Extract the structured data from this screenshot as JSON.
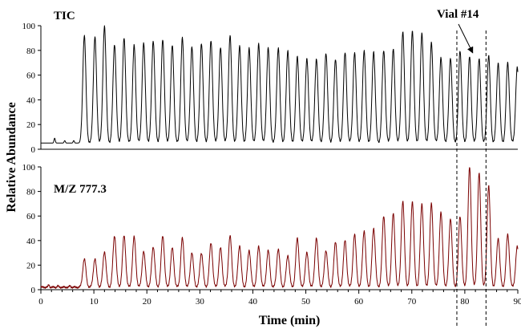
{
  "chart_data": {
    "type": "line",
    "xlabel": "Time (min)",
    "ylabel": "Relative Abundance",
    "xlim": [
      0,
      90
    ],
    "x_ticks": [
      0,
      10,
      20,
      30,
      40,
      50,
      60,
      70,
      80,
      90
    ],
    "grid": false,
    "vlines": [
      78.5,
      84
    ],
    "annotations": [
      {
        "text": "Vial #14",
        "points_to": {
          "panel": 0,
          "x": 81.5,
          "y": 78
        }
      }
    ],
    "panels": [
      {
        "label": "TIC",
        "ylim": [
          0,
          100
        ],
        "y_ticks": [
          0,
          20,
          40,
          60,
          80,
          100
        ],
        "color": "#000000",
        "baseline": 5,
        "minor_peaks": [
          {
            "t": 2.6,
            "h": 9
          },
          {
            "t": 4.5,
            "h": 7
          },
          {
            "t": 6.2,
            "h": 7
          }
        ],
        "peaks": [
          {
            "t": 8.2,
            "h": 92
          },
          {
            "t": 10.2,
            "h": 91
          },
          {
            "t": 12.0,
            "h": 100
          },
          {
            "t": 13.9,
            "h": 85
          },
          {
            "t": 15.7,
            "h": 90
          },
          {
            "t": 17.6,
            "h": 84
          },
          {
            "t": 19.4,
            "h": 86
          },
          {
            "t": 21.2,
            "h": 88
          },
          {
            "t": 23.0,
            "h": 89
          },
          {
            "t": 24.8,
            "h": 84
          },
          {
            "t": 26.7,
            "h": 90
          },
          {
            "t": 28.5,
            "h": 83
          },
          {
            "t": 30.3,
            "h": 86
          },
          {
            "t": 32.1,
            "h": 88
          },
          {
            "t": 33.9,
            "h": 82
          },
          {
            "t": 35.7,
            "h": 92
          },
          {
            "t": 37.5,
            "h": 84
          },
          {
            "t": 39.3,
            "h": 82
          },
          {
            "t": 41.1,
            "h": 85
          },
          {
            "t": 42.9,
            "h": 82
          },
          {
            "t": 44.8,
            "h": 82
          },
          {
            "t": 46.6,
            "h": 80
          },
          {
            "t": 48.4,
            "h": 75
          },
          {
            "t": 50.2,
            "h": 73
          },
          {
            "t": 52.0,
            "h": 73
          },
          {
            "t": 53.8,
            "h": 78
          },
          {
            "t": 55.6,
            "h": 73
          },
          {
            "t": 57.4,
            "h": 78
          },
          {
            "t": 59.2,
            "h": 78
          },
          {
            "t": 61.0,
            "h": 80
          },
          {
            "t": 62.8,
            "h": 79
          },
          {
            "t": 64.7,
            "h": 80
          },
          {
            "t": 66.5,
            "h": 81
          },
          {
            "t": 68.3,
            "h": 95
          },
          {
            "t": 70.1,
            "h": 96
          },
          {
            "t": 71.9,
            "h": 94
          },
          {
            "t": 73.7,
            "h": 86
          },
          {
            "t": 75.5,
            "h": 74
          },
          {
            "t": 77.3,
            "h": 74
          },
          {
            "t": 79.1,
            "h": 80
          },
          {
            "t": 80.9,
            "h": 75
          },
          {
            "t": 82.7,
            "h": 73
          },
          {
            "t": 84.5,
            "h": 76
          },
          {
            "t": 86.3,
            "h": 70
          },
          {
            "t": 88.1,
            "h": 70
          },
          {
            "t": 89.9,
            "h": 66
          }
        ]
      },
      {
        "label": "M/Z 777.3",
        "ylim": [
          0,
          100
        ],
        "y_ticks": [
          0,
          20,
          40,
          60,
          80,
          100
        ],
        "color": "#7a0000",
        "baseline": 2,
        "minor_peaks": [
          {
            "t": 1.5,
            "h": 4
          },
          {
            "t": 3.2,
            "h": 3
          },
          {
            "t": 5.5,
            "h": 3
          }
        ],
        "peaks": [
          {
            "t": 8.2,
            "h": 25
          },
          {
            "t": 10.2,
            "h": 25
          },
          {
            "t": 12.0,
            "h": 31
          },
          {
            "t": 13.9,
            "h": 44
          },
          {
            "t": 15.7,
            "h": 44
          },
          {
            "t": 17.6,
            "h": 43
          },
          {
            "t": 19.4,
            "h": 31
          },
          {
            "t": 21.2,
            "h": 35
          },
          {
            "t": 23.0,
            "h": 44
          },
          {
            "t": 24.8,
            "h": 34
          },
          {
            "t": 26.7,
            "h": 42
          },
          {
            "t": 28.5,
            "h": 30
          },
          {
            "t": 30.3,
            "h": 30
          },
          {
            "t": 32.1,
            "h": 38
          },
          {
            "t": 33.9,
            "h": 34
          },
          {
            "t": 35.7,
            "h": 44
          },
          {
            "t": 37.5,
            "h": 36
          },
          {
            "t": 39.3,
            "h": 32
          },
          {
            "t": 41.1,
            "h": 35
          },
          {
            "t": 42.9,
            "h": 32
          },
          {
            "t": 44.8,
            "h": 33
          },
          {
            "t": 46.6,
            "h": 28
          },
          {
            "t": 48.4,
            "h": 42
          },
          {
            "t": 50.2,
            "h": 30
          },
          {
            "t": 52.0,
            "h": 42
          },
          {
            "t": 53.8,
            "h": 32
          },
          {
            "t": 55.6,
            "h": 39
          },
          {
            "t": 57.4,
            "h": 40
          },
          {
            "t": 59.2,
            "h": 45
          },
          {
            "t": 61.0,
            "h": 48
          },
          {
            "t": 62.8,
            "h": 50
          },
          {
            "t": 64.7,
            "h": 60
          },
          {
            "t": 66.5,
            "h": 62
          },
          {
            "t": 68.3,
            "h": 72
          },
          {
            "t": 70.1,
            "h": 72
          },
          {
            "t": 71.9,
            "h": 70
          },
          {
            "t": 73.7,
            "h": 70
          },
          {
            "t": 75.5,
            "h": 63
          },
          {
            "t": 77.3,
            "h": 58
          },
          {
            "t": 79.1,
            "h": 60
          },
          {
            "t": 80.9,
            "h": 100
          },
          {
            "t": 82.7,
            "h": 95
          },
          {
            "t": 84.5,
            "h": 85
          },
          {
            "t": 86.3,
            "h": 42
          },
          {
            "t": 88.1,
            "h": 45
          },
          {
            "t": 89.9,
            "h": 35
          }
        ]
      }
    ]
  }
}
